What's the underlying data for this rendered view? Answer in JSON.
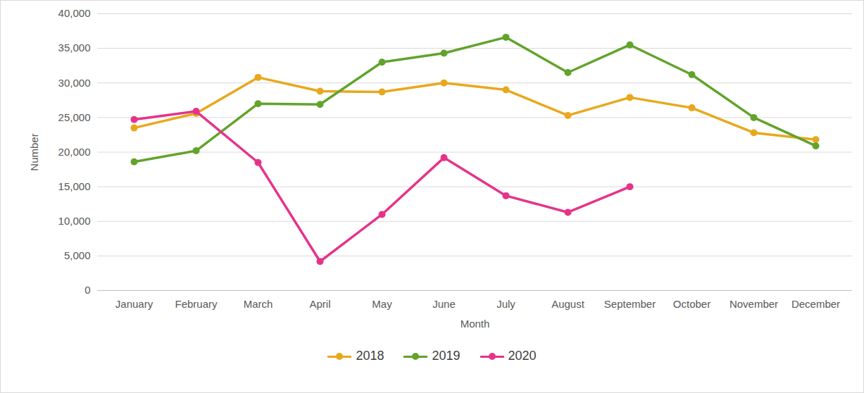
{
  "chart_data": {
    "type": "line",
    "x_label": "Month",
    "y_label": "Number",
    "categories": [
      "January",
      "February",
      "March",
      "April",
      "May",
      "June",
      "July",
      "August",
      "September",
      "October",
      "November",
      "December"
    ],
    "series": [
      {
        "name": "2018",
        "color": "#e8a81c",
        "values": [
          23500,
          25600,
          30800,
          28800,
          28700,
          30000,
          29000,
          25300,
          27900,
          26400,
          22800,
          21800
        ]
      },
      {
        "name": "2019",
        "color": "#62a32c",
        "values": [
          18600,
          20200,
          27000,
          26900,
          33000,
          34300,
          36600,
          31500,
          35500,
          31200,
          25000,
          20900
        ]
      },
      {
        "name": "2020",
        "color": "#e6338a",
        "values": [
          24700,
          25900,
          18500,
          4200,
          11000,
          19200,
          13700,
          11300,
          15000,
          null,
          null,
          null
        ]
      }
    ],
    "ylim": [
      0,
      40000
    ],
    "yticks": [
      0,
      {
        "value": 5000,
        "label": "5,000"
      },
      {
        "value": 10000,
        "label": "10,000"
      },
      {
        "value": 15000,
        "label": "15,000"
      },
      {
        "value": 20000,
        "label": "20,000"
      },
      {
        "value": 25000,
        "label": "25,000"
      },
      {
        "value": 30000,
        "label": "30,000"
      },
      {
        "value": 35000,
        "label": "35,000"
      },
      {
        "value": 40000,
        "label": "40,000"
      }
    ],
    "grid": true,
    "legend": "bottom",
    "marker": "circle"
  }
}
